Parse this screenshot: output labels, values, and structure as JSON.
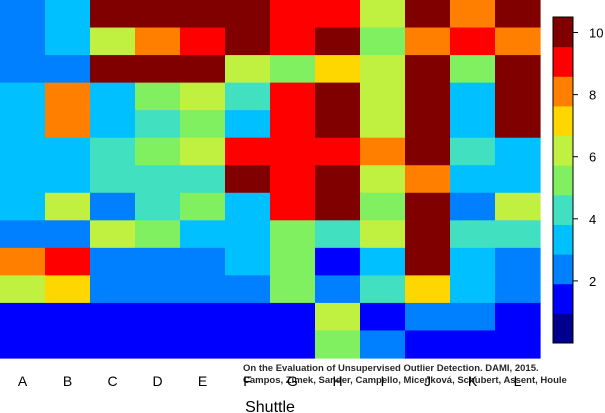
{
  "chart_data": {
    "type": "heatmap",
    "title": "",
    "xlabel": "Shuttle",
    "ylabel": "",
    "x_categories": [
      "A",
      "B",
      "C",
      "D",
      "E",
      "F",
      "G",
      "H",
      "I",
      "J",
      "K",
      "L"
    ],
    "rows": 13,
    "values": [
      [
        2,
        3,
        10,
        10,
        10,
        10,
        9,
        9,
        6,
        10,
        8,
        10
      ],
      [
        2,
        3,
        6,
        8,
        9,
        10,
        9,
        10,
        5,
        8,
        9,
        8
      ],
      [
        2,
        2,
        10,
        10,
        10,
        6,
        5,
        7,
        6,
        10,
        5,
        10
      ],
      [
        3,
        8,
        3,
        5,
        6,
        4,
        9,
        10,
        6,
        10,
        3,
        10
      ],
      [
        3,
        8,
        3,
        4,
        5,
        3,
        9,
        10,
        6,
        10,
        3,
        10
      ],
      [
        3,
        3,
        4,
        5,
        6,
        9,
        9,
        9,
        8,
        10,
        4,
        3
      ],
      [
        3,
        3,
        4,
        4,
        4,
        10,
        9,
        10,
        6,
        8,
        3,
        3
      ],
      [
        3,
        6,
        2,
        4,
        5,
        3,
        9,
        10,
        5,
        10,
        2,
        6
      ],
      [
        2,
        2,
        6,
        5,
        3,
        3,
        5,
        4,
        6,
        10,
        4,
        4
      ],
      [
        8,
        9,
        2,
        2,
        2,
        3,
        5,
        1,
        3,
        10,
        3,
        2
      ],
      [
        6,
        7,
        2,
        2,
        2,
        2,
        5,
        2,
        4,
        7,
        3,
        2
      ],
      [
        1,
        1,
        1,
        1,
        1,
        1,
        1,
        6,
        1,
        2,
        2,
        1
      ],
      [
        1,
        1,
        1,
        1,
        1,
        1,
        1,
        5,
        2,
        1,
        1,
        1
      ]
    ],
    "color_scale": {
      "min": 0,
      "max": 10.5,
      "ticks": [
        2,
        4,
        6,
        8,
        10
      ],
      "colors": [
        "#00008F",
        "#0000FF",
        "#0080FF",
        "#00C0FF",
        "#40E0C0",
        "#80F060",
        "#C0F040",
        "#FFD700",
        "#FF8000",
        "#FF0000",
        "#800000"
      ]
    },
    "legend_position": "right",
    "grid": false
  },
  "caption": {
    "line1": "On the Evaluation of Unsupervised Outlier Detection. DAMI, 2015.",
    "line2": "Campos, Zimek, Sander, Campello, Micenková, Schubert, Assent, Houle"
  }
}
